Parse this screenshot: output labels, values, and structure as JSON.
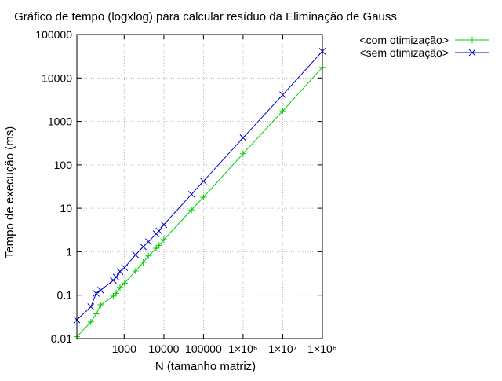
{
  "chart_data": {
    "type": "line",
    "title": "Gráfico de tempo (logxlog) para calcular resíduo da Eliminação de Gauss",
    "xlabel": "N (tamanho matriz)",
    "ylabel": "Tempo de execução (ms)",
    "xscale": "log",
    "yscale": "log",
    "xlim": [
      64,
      100000000
    ],
    "ylim": [
      0.01,
      100000
    ],
    "grid": true,
    "legend_position": "top-right, outside plot",
    "x_ticks": [
      {
        "value": 1000,
        "label": "1000"
      },
      {
        "value": 10000,
        "label": "10000"
      },
      {
        "value": 100000,
        "label": "100000"
      },
      {
        "value": 1000000,
        "label": "1×10⁶"
      },
      {
        "value": 10000000,
        "label": "1×10⁷"
      },
      {
        "value": 100000000,
        "label": "1×10⁸"
      }
    ],
    "y_ticks": [
      {
        "value": 0.01,
        "label": "0.01"
      },
      {
        "value": 0.1,
        "label": "0.1"
      },
      {
        "value": 1,
        "label": "1"
      },
      {
        "value": 10,
        "label": "10"
      },
      {
        "value": 100,
        "label": "100"
      },
      {
        "value": 1000,
        "label": "1000"
      },
      {
        "value": 10000,
        "label": "10000"
      },
      {
        "value": 100000,
        "label": "100000"
      }
    ],
    "series": [
      {
        "name": "<com otimização>",
        "color": "#00cc00",
        "marker": "plus",
        "points": [
          {
            "x": 64,
            "y": 0.011
          },
          {
            "x": 144,
            "y": 0.024
          },
          {
            "x": 196,
            "y": 0.037
          },
          {
            "x": 256,
            "y": 0.06
          },
          {
            "x": 529,
            "y": 0.095
          },
          {
            "x": 625,
            "y": 0.11
          },
          {
            "x": 784,
            "y": 0.15
          },
          {
            "x": 1024,
            "y": 0.19
          },
          {
            "x": 1936,
            "y": 0.36
          },
          {
            "x": 3025,
            "y": 0.57
          },
          {
            "x": 4096,
            "y": 0.8
          },
          {
            "x": 6400,
            "y": 1.2
          },
          {
            "x": 7569,
            "y": 1.4
          },
          {
            "x": 10000,
            "y": 1.9
          },
          {
            "x": 50000,
            "y": 9.2
          },
          {
            "x": 100000,
            "y": 18
          },
          {
            "x": 1000000,
            "y": 180
          },
          {
            "x": 10000000,
            "y": 1750
          },
          {
            "x": 100000000,
            "y": 17500
          }
        ]
      },
      {
        "name": "<sem otimização>",
        "color": "#0000cc",
        "marker": "x",
        "points": [
          {
            "x": 64,
            "y": 0.027
          },
          {
            "x": 144,
            "y": 0.054
          },
          {
            "x": 196,
            "y": 0.11
          },
          {
            "x": 256,
            "y": 0.13
          },
          {
            "x": 529,
            "y": 0.22
          },
          {
            "x": 625,
            "y": 0.26
          },
          {
            "x": 784,
            "y": 0.35
          },
          {
            "x": 1024,
            "y": 0.43
          },
          {
            "x": 1936,
            "y": 0.85
          },
          {
            "x": 3025,
            "y": 1.3
          },
          {
            "x": 4096,
            "y": 1.7
          },
          {
            "x": 6400,
            "y": 2.6
          },
          {
            "x": 7569,
            "y": 3.0
          },
          {
            "x": 10000,
            "y": 4.2
          },
          {
            "x": 50000,
            "y": 21
          },
          {
            "x": 100000,
            "y": 42
          },
          {
            "x": 1000000,
            "y": 420
          },
          {
            "x": 10000000,
            "y": 4100
          },
          {
            "x": 100000000,
            "y": 41000
          }
        ]
      }
    ]
  }
}
